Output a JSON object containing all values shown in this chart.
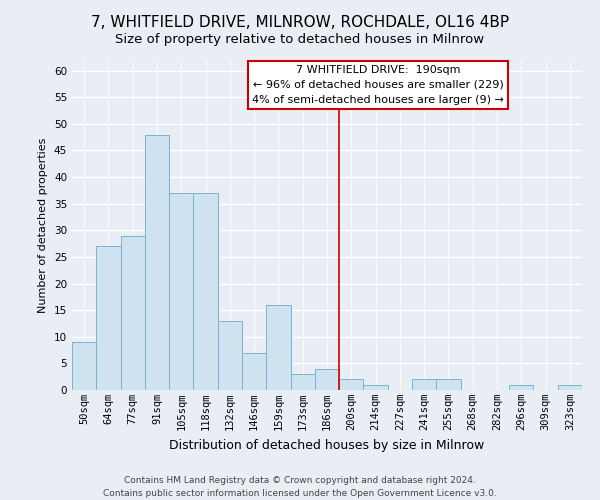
{
  "title": "7, WHITFIELD DRIVE, MILNROW, ROCHDALE, OL16 4BP",
  "subtitle": "Size of property relative to detached houses in Milnrow",
  "xlabel": "Distribution of detached houses by size in Milnrow",
  "ylabel": "Number of detached properties",
  "bar_labels": [
    "50sqm",
    "64sqm",
    "77sqm",
    "91sqm",
    "105sqm",
    "118sqm",
    "132sqm",
    "146sqm",
    "159sqm",
    "173sqm",
    "186sqm",
    "200sqm",
    "214sqm",
    "227sqm",
    "241sqm",
    "255sqm",
    "268sqm",
    "282sqm",
    "296sqm",
    "309sqm",
    "323sqm"
  ],
  "bar_values": [
    9,
    27,
    29,
    48,
    37,
    37,
    13,
    7,
    16,
    3,
    4,
    2,
    1,
    0,
    2,
    2,
    0,
    0,
    1,
    0,
    1
  ],
  "bar_color": "#cfe2f0",
  "bar_edge_color": "#7ab3d4",
  "ylim": [
    0,
    62
  ],
  "yticks": [
    0,
    5,
    10,
    15,
    20,
    25,
    30,
    35,
    40,
    45,
    50,
    55,
    60
  ],
  "vline_x": 10.5,
  "vline_color": "#cc0000",
  "annotation_title": "7 WHITFIELD DRIVE:  190sqm",
  "annotation_line1": "← 96% of detached houses are smaller (229)",
  "annotation_line2": "4% of semi-detached houses are larger (9) →",
  "annotation_box_color": "#ffffff",
  "annotation_box_edge_color": "#cc0000",
  "footer_line1": "Contains HM Land Registry data © Crown copyright and database right 2024.",
  "footer_line2": "Contains public sector information licensed under the Open Government Licence v3.0.",
  "background_color": "#e8eef4",
  "grid_color": "#ffffff",
  "title_fontsize": 11,
  "ylabel_fontsize": 8,
  "xlabel_fontsize": 9,
  "tick_fontsize": 7.5,
  "ann_fontsize": 8,
  "footer_fontsize": 6.5
}
